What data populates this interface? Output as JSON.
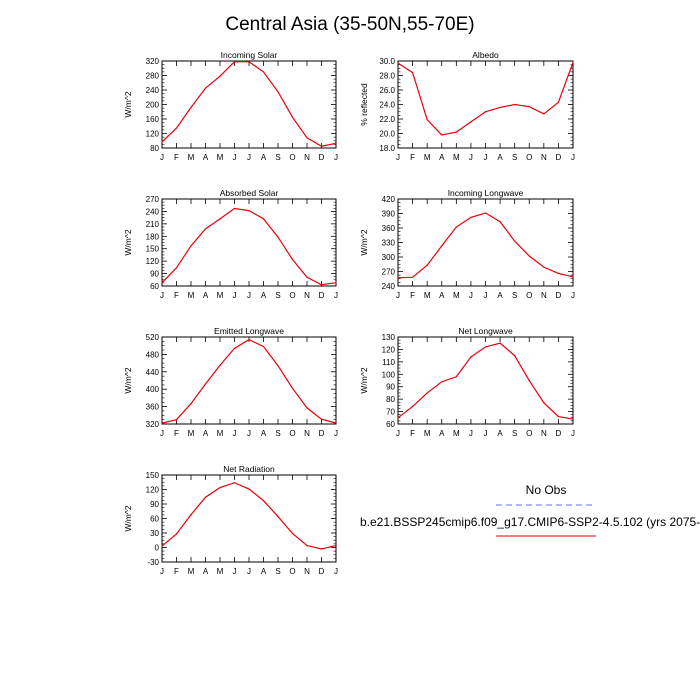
{
  "page": {
    "title": "Central Asia (35-50N,55-70E)"
  },
  "legend": {
    "obs_label": "No Obs",
    "obs_color": "#6b6bff",
    "model_label": "b.e21.BSSP245cmip6.f09_g17.CMIP6-SSP2-4.5.102 (yrs 2075-",
    "model_color": "#e8000b"
  },
  "chart_data": [
    {
      "type": "line",
      "title": "Incoming Solar",
      "ylabel": "W/m^2",
      "categories": [
        "J",
        "F",
        "M",
        "A",
        "M",
        "J",
        "J",
        "A",
        "S",
        "O",
        "N",
        "D",
        "J"
      ],
      "ylim": [
        80,
        320
      ],
      "yticks": [
        "80",
        "120",
        "160",
        "200",
        "240",
        "280",
        "320"
      ],
      "series": [
        {
          "values": [
            97,
            135,
            192,
            245,
            278,
            318,
            318,
            290,
            235,
            165,
            108,
            85,
            93
          ]
        }
      ]
    },
    {
      "type": "line",
      "title": "Albedo",
      "ylabel": "% reflected",
      "categories": [
        "J",
        "F",
        "M",
        "A",
        "M",
        "J",
        "J",
        "A",
        "S",
        "O",
        "N",
        "D",
        "J"
      ],
      "ylim": [
        18,
        30
      ],
      "yticks": [
        "18.0",
        "20.0",
        "22.0",
        "24.0",
        "26.0",
        "28.0",
        "30.0"
      ],
      "series": [
        {
          "values": [
            29.7,
            28.4,
            21.9,
            19.8,
            20.2,
            21.6,
            23.0,
            23.6,
            24.0,
            23.7,
            22.7,
            24.3,
            29.8
          ]
        }
      ]
    },
    {
      "type": "line",
      "title": "Absorbed Solar",
      "ylabel": "W/m^2",
      "categories": [
        "J",
        "F",
        "M",
        "A",
        "M",
        "J",
        "J",
        "A",
        "S",
        "O",
        "N",
        "D",
        "J"
      ],
      "ylim": [
        60,
        270
      ],
      "yticks": [
        "60",
        "90",
        "120",
        "150",
        "180",
        "210",
        "240",
        "270"
      ],
      "series": [
        {
          "values": [
            68,
            104,
            157,
            198,
            222,
            247,
            242,
            222,
            178,
            124,
            81,
            63,
            68
          ]
        }
      ]
    },
    {
      "type": "line",
      "title": "Incoming Longwave",
      "ylabel": "W/m^2",
      "categories": [
        "J",
        "F",
        "M",
        "A",
        "M",
        "J",
        "J",
        "A",
        "S",
        "O",
        "N",
        "D",
        "J"
      ],
      "ylim": [
        240,
        420
      ],
      "yticks": [
        "240",
        "270",
        "300",
        "330",
        "360",
        "390",
        "420"
      ],
      "series": [
        {
          "values": [
            257,
            258,
            283,
            323,
            362,
            382,
            391,
            373,
            333,
            302,
            279,
            266,
            259
          ]
        }
      ]
    },
    {
      "type": "line",
      "title": "Emitted Longwave",
      "ylabel": "W/m^2",
      "categories": [
        "J",
        "F",
        "M",
        "A",
        "M",
        "J",
        "J",
        "A",
        "S",
        "O",
        "N",
        "D",
        "J"
      ],
      "ylim": [
        320,
        520
      ],
      "yticks": [
        "320",
        "360",
        "400",
        "440",
        "480",
        "520"
      ],
      "series": [
        {
          "values": [
            322,
            330,
            367,
            412,
            455,
            494,
            514,
            498,
            454,
            402,
            357,
            331,
            322
          ]
        }
      ]
    },
    {
      "type": "line",
      "title": "Net Longwave",
      "ylabel": "W/m^2",
      "categories": [
        "J",
        "F",
        "M",
        "A",
        "M",
        "J",
        "J",
        "A",
        "S",
        "O",
        "N",
        "D",
        "J"
      ],
      "ylim": [
        60,
        130
      ],
      "yticks": [
        "60",
        "70",
        "80",
        "90",
        "100",
        "110",
        "120",
        "130"
      ],
      "series": [
        {
          "values": [
            65,
            74,
            85,
            94,
            98,
            114,
            122,
            125,
            115,
            95,
            77,
            66,
            64
          ]
        }
      ]
    },
    {
      "type": "line",
      "title": "Net Radiation",
      "ylabel": "W/m^2",
      "categories": [
        "J",
        "F",
        "M",
        "A",
        "M",
        "J",
        "J",
        "A",
        "S",
        "O",
        "N",
        "D",
        "J"
      ],
      "ylim": [
        -30,
        150
      ],
      "yticks": [
        "-30",
        "0",
        "30",
        "60",
        "90",
        "120",
        "150"
      ],
      "series": [
        {
          "values": [
            3,
            28,
            68,
            104,
            124,
            134,
            121,
            97,
            64,
            29,
            4,
            -3,
            4
          ]
        }
      ]
    }
  ]
}
